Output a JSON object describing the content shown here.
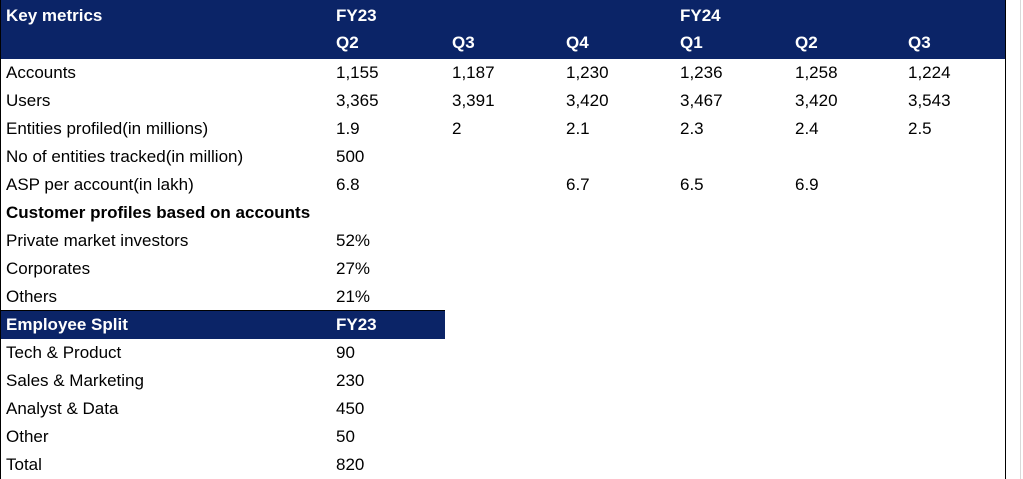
{
  "header": {
    "title": "Key metrics",
    "fy23": "FY23",
    "fy24": "FY24",
    "quarters": [
      "Q2",
      "Q3",
      "Q4",
      "Q1",
      "Q2",
      "Q3"
    ]
  },
  "metrics": [
    {
      "label": "Accounts",
      "values": [
        "1,155",
        "1,187",
        "1,230",
        "1,236",
        "1,258",
        "1,224"
      ]
    },
    {
      "label": "Users",
      "values": [
        "3,365",
        "3,391",
        "3,420",
        "3,467",
        "3,420",
        "3,543"
      ]
    },
    {
      "label": "Entities profiled(in millions)",
      "values": [
        "1.9",
        "2",
        "2.1",
        "2.3",
        "2.4",
        "2.5"
      ]
    },
    {
      "label": "No of entities tracked(in million)",
      "values": [
        "500",
        "",
        "",
        "",
        "",
        ""
      ]
    },
    {
      "label": "ASP per account(in lakh)",
      "values": [
        "6.8",
        "",
        "6.7",
        "6.5",
        "6.9",
        ""
      ]
    }
  ],
  "customer_profiles": {
    "title": "Customer profiles based on accounts",
    "rows": [
      {
        "label": "Private market investors",
        "value": "52%"
      },
      {
        "label": "Corporates",
        "value": "27%"
      },
      {
        "label": "Others",
        "value": "21%"
      }
    ]
  },
  "employee_split": {
    "title": "Employee Split",
    "year": "FY23",
    "rows": [
      {
        "label": "Tech & Product",
        "value": "90"
      },
      {
        "label": "Sales & Marketing",
        "value": "230"
      },
      {
        "label": "Analyst & Data",
        "value": "450"
      },
      {
        "label": "Other",
        "value": "50"
      },
      {
        "label": "Total",
        "value": "820"
      }
    ]
  },
  "colors": {
    "header_bg": "#0b2467",
    "header_text": "#ffffff"
  }
}
